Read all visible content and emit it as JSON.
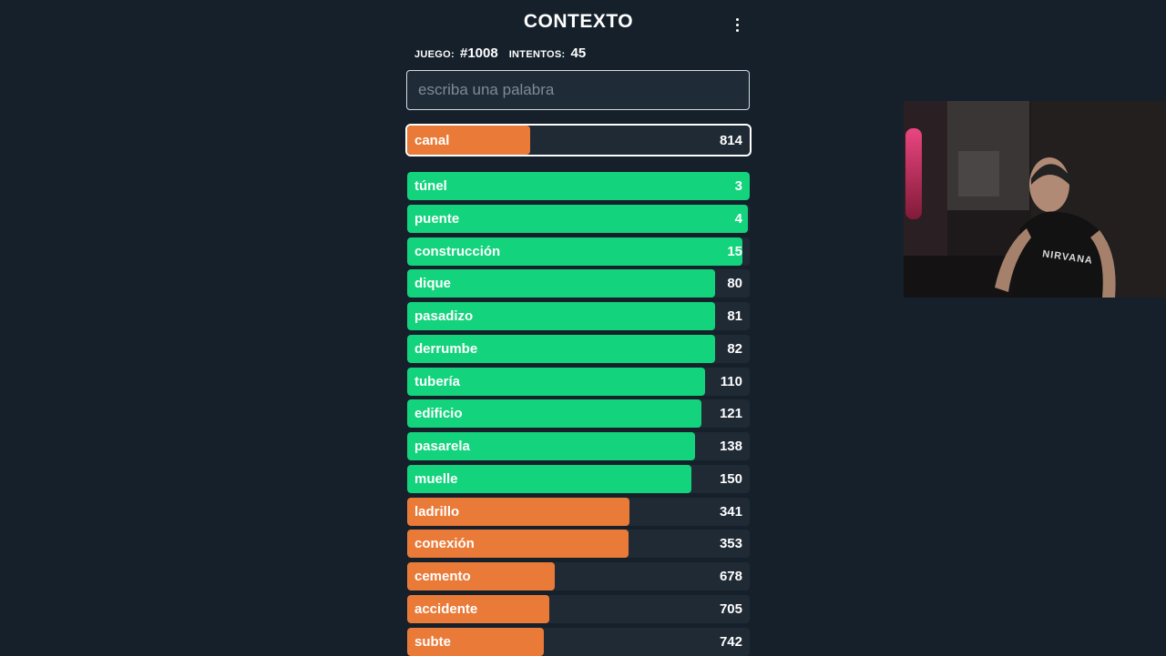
{
  "app": {
    "title": "CONTEXTO"
  },
  "info": {
    "game_label": "JUEGO:",
    "game_value": "#1008",
    "attempts_label": "INTENTOS:",
    "attempts_value": "45"
  },
  "input": {
    "placeholder": "escriba una palabra",
    "value": ""
  },
  "colors": {
    "green": "#13d37c",
    "orange": "#ea7a38",
    "track": "#1f2a35",
    "background": "#15202b"
  },
  "current_guess": {
    "word": "canal",
    "rank": 814,
    "fill_fraction": 0.36,
    "color": "orange"
  },
  "guesses": [
    {
      "word": "túnel",
      "rank": 3,
      "fill_fraction": 1.0,
      "color": "green"
    },
    {
      "word": "puente",
      "rank": 4,
      "fill_fraction": 0.995,
      "color": "green"
    },
    {
      "word": "construcción",
      "rank": 15,
      "fill_fraction": 0.98,
      "color": "green"
    },
    {
      "word": "dique",
      "rank": 80,
      "fill_fraction": 0.9,
      "color": "green"
    },
    {
      "word": "pasadizo",
      "rank": 81,
      "fill_fraction": 0.9,
      "color": "green"
    },
    {
      "word": "derrumbe",
      "rank": 82,
      "fill_fraction": 0.9,
      "color": "green"
    },
    {
      "word": "tubería",
      "rank": 110,
      "fill_fraction": 0.87,
      "color": "green"
    },
    {
      "word": "edificio",
      "rank": 121,
      "fill_fraction": 0.86,
      "color": "green"
    },
    {
      "word": "pasarela",
      "rank": 138,
      "fill_fraction": 0.84,
      "color": "green"
    },
    {
      "word": "muelle",
      "rank": 150,
      "fill_fraction": 0.83,
      "color": "green"
    },
    {
      "word": "ladrillo",
      "rank": 341,
      "fill_fraction": 0.65,
      "color": "orange"
    },
    {
      "word": "conexión",
      "rank": 353,
      "fill_fraction": 0.645,
      "color": "orange"
    },
    {
      "word": "cemento",
      "rank": 678,
      "fill_fraction": 0.43,
      "color": "orange"
    },
    {
      "word": "accidente",
      "rank": 705,
      "fill_fraction": 0.415,
      "color": "orange"
    },
    {
      "word": "subte",
      "rank": 742,
      "fill_fraction": 0.4,
      "color": "orange"
    }
  ],
  "webcam": {
    "shirt_text": "NIRVANA"
  }
}
